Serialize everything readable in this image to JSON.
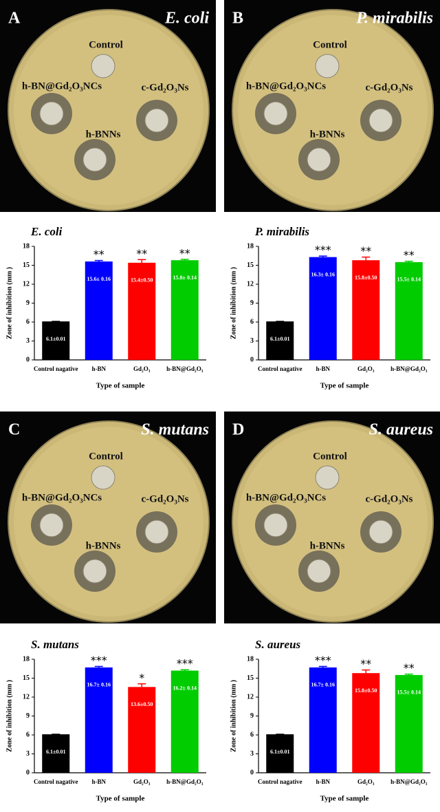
{
  "photos": [
    {
      "letter": "A",
      "organism": "E. coli",
      "control": "Control",
      "composite": "h-BN@Gd₂O₃NCs",
      "oxide": "c-Gd₂O₃Ns",
      "nitride": "h-BNNs"
    },
    {
      "letter": "B",
      "organism": "P. mirabilis",
      "control": "Control",
      "composite": "h-BN@Gd₂O₃NCs",
      "oxide": "c-Gd₂O₃Ns",
      "nitride": "h-BNNs"
    },
    {
      "letter": "C",
      "organism": "S. mutans",
      "control": "Control",
      "composite": "h-BN@Gd₂O₃NCs",
      "oxide": "c-Gd₂O₃Ns",
      "nitride": "h-BNNs"
    },
    {
      "letter": "D",
      "organism": "S. aureus",
      "control": "Control",
      "composite": "h-BN@Gd₂O₃NCs",
      "oxide": "c-Gd₂O₃Ns",
      "nitride": "h-BNNs"
    }
  ],
  "chart_data": [
    {
      "type": "bar",
      "title": "E. coli",
      "xlabel": "Type of sample",
      "ylabel": "Zone of inhibition (mm )",
      "categories": [
        "Control nagative",
        "h-BN",
        "Gd₂O₃",
        "h-BN@Gd₂O₃"
      ],
      "values": [
        6.1,
        15.6,
        15.4,
        15.8
      ],
      "errors": [
        0.01,
        0.16,
        0.5,
        0.14
      ],
      "value_labels": [
        "6.1±0.01",
        "15.6± 0.16",
        "15.4±0.50",
        "15.8± 0.14"
      ],
      "significance": [
        null,
        "**",
        "**",
        "**"
      ],
      "colors": [
        "#000000",
        "#0000ff",
        "#ff0000",
        "#00cc00"
      ],
      "ylim": [
        0,
        18
      ],
      "yticks": [
        0,
        3,
        6,
        9,
        12,
        15,
        18
      ]
    },
    {
      "type": "bar",
      "title": "P. mirabilis",
      "xlabel": "Type of sample",
      "ylabel": "Zone of inhibition (mm )",
      "categories": [
        "Control nagative",
        "h-BN",
        "Gd₂O₃",
        "h-BN@Gd₂O₃"
      ],
      "values": [
        6.1,
        16.3,
        15.8,
        15.5
      ],
      "errors": [
        0.01,
        0.16,
        0.5,
        0.14
      ],
      "value_labels": [
        "6.1±0.01",
        "16.3± 0.16",
        "15.8±0.50",
        "15.5± 0.14"
      ],
      "significance": [
        null,
        "***",
        "**",
        "**"
      ],
      "colors": [
        "#000000",
        "#0000ff",
        "#ff0000",
        "#00cc00"
      ],
      "ylim": [
        0,
        18
      ],
      "yticks": [
        0,
        3,
        6,
        9,
        12,
        15,
        18
      ]
    },
    {
      "type": "bar",
      "title": "S. mutans",
      "xlabel": "Type of sample",
      "ylabel": "Zone of inhibition (mm )",
      "categories": [
        "Control nagative",
        "h-BN",
        "Gd₂O₃",
        "h-BN@Gd₂O₃"
      ],
      "values": [
        6.1,
        16.7,
        13.6,
        16.2
      ],
      "errors": [
        0.01,
        0.16,
        0.5,
        0.14
      ],
      "value_labels": [
        "6.1±0.01",
        "16.7± 0.16",
        "13.6±0.50",
        "16.2± 0.14"
      ],
      "significance": [
        null,
        "***",
        "*",
        "***"
      ],
      "colors": [
        "#000000",
        "#0000ff",
        "#ff0000",
        "#00cc00"
      ],
      "ylim": [
        0,
        18
      ],
      "yticks": [
        0,
        3,
        6,
        9,
        12,
        15,
        18
      ]
    },
    {
      "type": "bar",
      "title": "S. aureus",
      "xlabel": "Type of sample",
      "ylabel": "Zone of inhibition (mm )",
      "categories": [
        "Control nagative",
        "h-BN",
        "Gd₂O₃",
        "h-BN@Gd₂O₃"
      ],
      "values": [
        6.1,
        16.7,
        15.8,
        15.5
      ],
      "errors": [
        0.01,
        0.16,
        0.5,
        0.14
      ],
      "value_labels": [
        "6.1±0.01",
        "16.7± 0.16",
        "15.8±0.50",
        "15.5± 0.14"
      ],
      "significance": [
        null,
        "***",
        "**",
        "**"
      ],
      "colors": [
        "#000000",
        "#0000ff",
        "#ff0000",
        "#00cc00"
      ],
      "ylim": [
        0,
        18
      ],
      "yticks": [
        0,
        3,
        6,
        9,
        12,
        15,
        18
      ]
    }
  ]
}
